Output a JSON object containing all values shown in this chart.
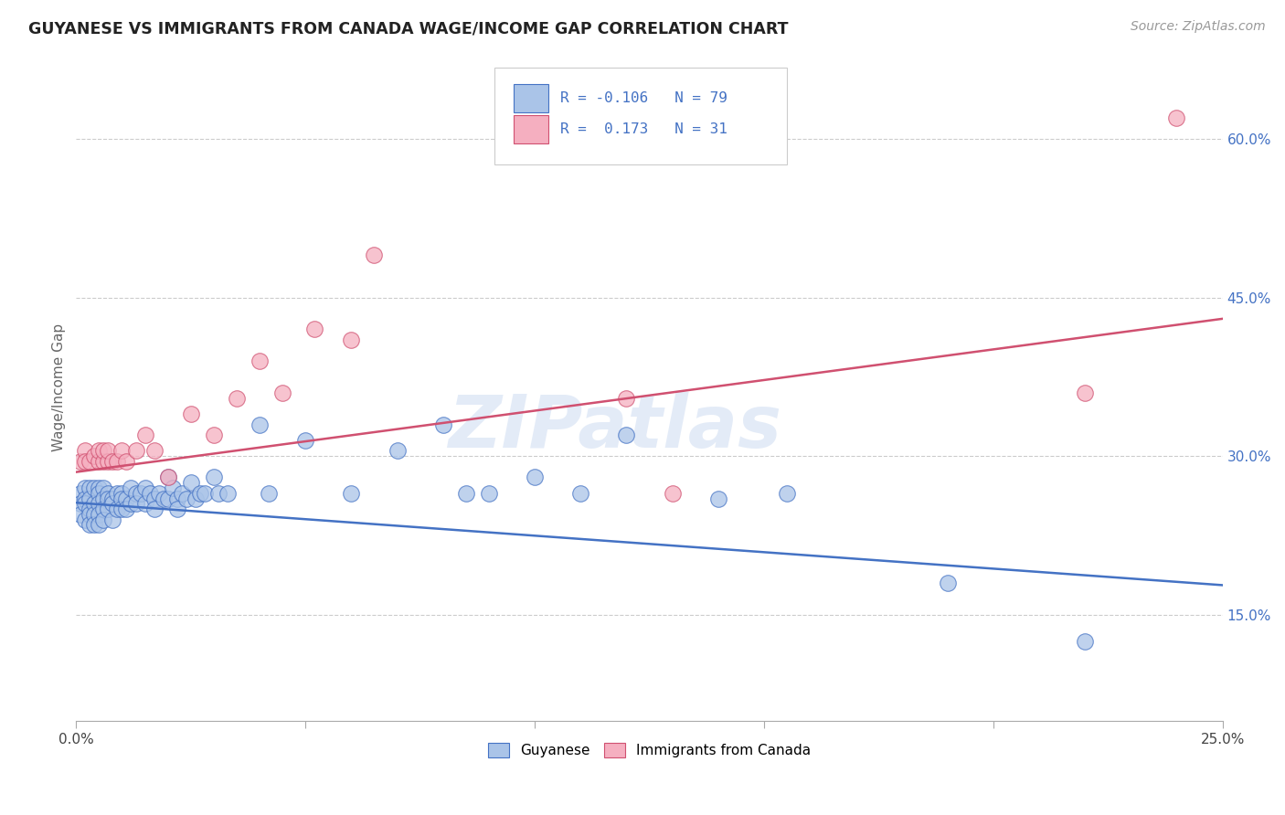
{
  "title": "GUYANESE VS IMMIGRANTS FROM CANADA WAGE/INCOME GAP CORRELATION CHART",
  "source": "Source: ZipAtlas.com",
  "ylabel": "Wage/Income Gap",
  "xlim": [
    0.0,
    0.25
  ],
  "ylim": [
    0.05,
    0.68
  ],
  "yticks": [
    0.15,
    0.3,
    0.45,
    0.6
  ],
  "ytick_labels": [
    "15.0%",
    "30.0%",
    "45.0%",
    "60.0%"
  ],
  "xticks": [
    0.0,
    0.05,
    0.1,
    0.15,
    0.2,
    0.25
  ],
  "xtick_labels": [
    "0.0%",
    "",
    "",
    "",
    "",
    "25.0%"
  ],
  "blue_color": "#aac4e8",
  "pink_color": "#f5afc0",
  "blue_line_color": "#4472c4",
  "pink_line_color": "#d05070",
  "legend_r_blue": "-0.106",
  "legend_n_blue": "79",
  "legend_r_pink": "0.173",
  "legend_n_pink": "31",
  "blue_label": "Guyanese",
  "pink_label": "Immigrants from Canada",
  "watermark": "ZIPatlas",
  "blue_scatter_x": [
    0.001,
    0.001,
    0.001,
    0.002,
    0.002,
    0.002,
    0.002,
    0.003,
    0.003,
    0.003,
    0.003,
    0.003,
    0.004,
    0.004,
    0.004,
    0.004,
    0.005,
    0.005,
    0.005,
    0.005,
    0.005,
    0.006,
    0.006,
    0.006,
    0.006,
    0.007,
    0.007,
    0.007,
    0.008,
    0.008,
    0.008,
    0.009,
    0.009,
    0.01,
    0.01,
    0.01,
    0.011,
    0.011,
    0.012,
    0.012,
    0.013,
    0.013,
    0.014,
    0.015,
    0.015,
    0.016,
    0.017,
    0.017,
    0.018,
    0.019,
    0.02,
    0.02,
    0.021,
    0.022,
    0.022,
    0.023,
    0.024,
    0.025,
    0.026,
    0.027,
    0.028,
    0.03,
    0.031,
    0.033,
    0.04,
    0.042,
    0.05,
    0.06,
    0.07,
    0.08,
    0.085,
    0.09,
    0.1,
    0.11,
    0.12,
    0.14,
    0.155,
    0.19,
    0.22
  ],
  "blue_scatter_y": [
    0.265,
    0.255,
    0.245,
    0.27,
    0.26,
    0.255,
    0.24,
    0.27,
    0.26,
    0.25,
    0.245,
    0.235,
    0.27,
    0.255,
    0.245,
    0.235,
    0.27,
    0.265,
    0.255,
    0.245,
    0.235,
    0.27,
    0.26,
    0.25,
    0.24,
    0.265,
    0.26,
    0.25,
    0.26,
    0.255,
    0.24,
    0.265,
    0.25,
    0.265,
    0.26,
    0.25,
    0.26,
    0.25,
    0.27,
    0.255,
    0.265,
    0.255,
    0.265,
    0.27,
    0.255,
    0.265,
    0.26,
    0.25,
    0.265,
    0.26,
    0.28,
    0.26,
    0.27,
    0.26,
    0.25,
    0.265,
    0.26,
    0.275,
    0.26,
    0.265,
    0.265,
    0.28,
    0.265,
    0.265,
    0.33,
    0.265,
    0.315,
    0.265,
    0.305,
    0.33,
    0.265,
    0.265,
    0.28,
    0.265,
    0.32,
    0.26,
    0.265,
    0.18,
    0.125
  ],
  "pink_scatter_x": [
    0.001,
    0.002,
    0.002,
    0.003,
    0.004,
    0.005,
    0.005,
    0.006,
    0.006,
    0.007,
    0.007,
    0.008,
    0.009,
    0.01,
    0.011,
    0.013,
    0.015,
    0.017,
    0.02,
    0.025,
    0.03,
    0.035,
    0.04,
    0.045,
    0.052,
    0.06,
    0.065,
    0.12,
    0.13,
    0.22,
    0.24
  ],
  "pink_scatter_y": [
    0.295,
    0.305,
    0.295,
    0.295,
    0.3,
    0.295,
    0.305,
    0.295,
    0.305,
    0.295,
    0.305,
    0.295,
    0.295,
    0.305,
    0.295,
    0.305,
    0.32,
    0.305,
    0.28,
    0.34,
    0.32,
    0.355,
    0.39,
    0.36,
    0.42,
    0.41,
    0.49,
    0.355,
    0.265,
    0.36,
    0.62
  ],
  "blue_trend_x": [
    0.0,
    0.25
  ],
  "blue_trend_y": [
    0.256,
    0.178
  ],
  "pink_trend_x": [
    0.0,
    0.25
  ],
  "pink_trend_y": [
    0.285,
    0.43
  ]
}
